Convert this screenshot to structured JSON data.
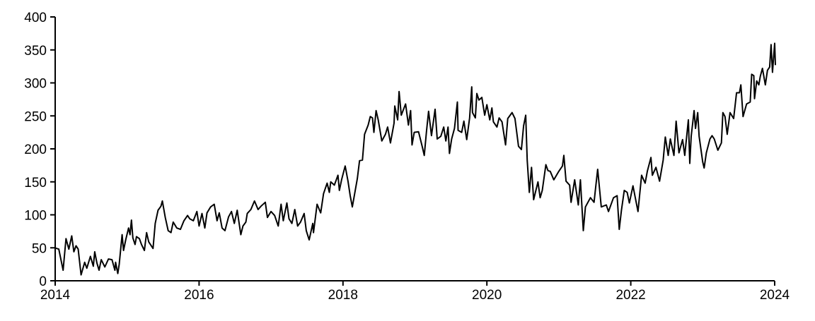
{
  "chart_data": {
    "type": "line",
    "title": "",
    "xlabel": "",
    "ylabel": "",
    "xlim": [
      2014,
      2024
    ],
    "ylim": [
      0,
      400
    ],
    "x_ticks": [
      "2014",
      "2016",
      "2018",
      "2020",
      "2022",
      "2024"
    ],
    "y_ticks": [
      "0",
      "50",
      "100",
      "150",
      "200",
      "250",
      "300",
      "350",
      "400"
    ],
    "grid": false,
    "legend": "none",
    "line_color": "#000000",
    "series": [
      {
        "points": [
          [
            2014.0,
            50
          ],
          [
            2014.02,
            49
          ],
          [
            2014.05,
            48
          ],
          [
            2014.11,
            16
          ],
          [
            2014.15,
            64
          ],
          [
            2014.19,
            48
          ],
          [
            2014.23,
            68
          ],
          [
            2014.26,
            44
          ],
          [
            2014.29,
            53
          ],
          [
            2014.32,
            48
          ],
          [
            2014.36,
            9
          ],
          [
            2014.41,
            28
          ],
          [
            2014.44,
            19
          ],
          [
            2014.49,
            37
          ],
          [
            2014.53,
            22
          ],
          [
            2014.55,
            44
          ],
          [
            2014.58,
            27
          ],
          [
            2014.61,
            16
          ],
          [
            2014.64,
            32
          ],
          [
            2014.69,
            21
          ],
          [
            2014.74,
            33
          ],
          [
            2014.79,
            32
          ],
          [
            2014.83,
            16
          ],
          [
            2014.84,
            28
          ],
          [
            2014.87,
            11
          ],
          [
            2014.89,
            25
          ],
          [
            2014.93,
            70
          ],
          [
            2014.95,
            46
          ],
          [
            2014.98,
            62
          ],
          [
            2015.02,
            80
          ],
          [
            2015.04,
            70
          ],
          [
            2015.06,
            92
          ],
          [
            2015.08,
            65
          ],
          [
            2015.11,
            55
          ],
          [
            2015.13,
            67
          ],
          [
            2015.17,
            64
          ],
          [
            2015.2,
            55
          ],
          [
            2015.24,
            46
          ],
          [
            2015.27,
            73
          ],
          [
            2015.3,
            59
          ],
          [
            2015.36,
            49
          ],
          [
            2015.39,
            87
          ],
          [
            2015.43,
            107
          ],
          [
            2015.47,
            113
          ],
          [
            2015.49,
            121
          ],
          [
            2015.53,
            96
          ],
          [
            2015.57,
            76
          ],
          [
            2015.61,
            73
          ],
          [
            2015.64,
            89
          ],
          [
            2015.69,
            80
          ],
          [
            2015.74,
            78
          ],
          [
            2015.79,
            91
          ],
          [
            2015.84,
            99
          ],
          [
            2015.87,
            94
          ],
          [
            2015.92,
            91
          ],
          [
            2015.97,
            105
          ],
          [
            2016.0,
            83
          ],
          [
            2016.04,
            102
          ],
          [
            2016.08,
            80
          ],
          [
            2016.11,
            103
          ],
          [
            2016.16,
            112
          ],
          [
            2016.21,
            116
          ],
          [
            2016.25,
            91
          ],
          [
            2016.28,
            103
          ],
          [
            2016.32,
            80
          ],
          [
            2016.36,
            76
          ],
          [
            2016.41,
            97
          ],
          [
            2016.45,
            105
          ],
          [
            2016.49,
            87
          ],
          [
            2016.53,
            107
          ],
          [
            2016.58,
            70
          ],
          [
            2016.61,
            83
          ],
          [
            2016.65,
            89
          ],
          [
            2016.67,
            102
          ],
          [
            2016.72,
            108
          ],
          [
            2016.77,
            121
          ],
          [
            2016.82,
            108
          ],
          [
            2016.86,
            113
          ],
          [
            2016.92,
            119
          ],
          [
            2016.95,
            96
          ],
          [
            2017.0,
            105
          ],
          [
            2017.05,
            99
          ],
          [
            2017.1,
            83
          ],
          [
            2017.14,
            116
          ],
          [
            2017.17,
            91
          ],
          [
            2017.22,
            118
          ],
          [
            2017.25,
            94
          ],
          [
            2017.29,
            87
          ],
          [
            2017.33,
            108
          ],
          [
            2017.37,
            83
          ],
          [
            2017.41,
            89
          ],
          [
            2017.46,
            102
          ],
          [
            2017.49,
            76
          ],
          [
            2017.53,
            62
          ],
          [
            2017.58,
            87
          ],
          [
            2017.59,
            73
          ],
          [
            2017.64,
            116
          ],
          [
            2017.69,
            103
          ],
          [
            2017.73,
            132
          ],
          [
            2017.78,
            148
          ],
          [
            2017.81,
            134
          ],
          [
            2017.83,
            150
          ],
          [
            2017.88,
            145
          ],
          [
            2017.93,
            160
          ],
          [
            2017.95,
            137
          ],
          [
            2017.98,
            153
          ],
          [
            2018.03,
            174
          ],
          [
            2018.07,
            151
          ],
          [
            2018.1,
            129
          ],
          [
            2018.13,
            112
          ],
          [
            2018.2,
            155
          ],
          [
            2018.23,
            182
          ],
          [
            2018.27,
            183
          ],
          [
            2018.3,
            222
          ],
          [
            2018.35,
            236
          ],
          [
            2018.38,
            249
          ],
          [
            2018.41,
            247
          ],
          [
            2018.43,
            225
          ],
          [
            2018.46,
            258
          ],
          [
            2018.49,
            244
          ],
          [
            2018.54,
            212
          ],
          [
            2018.59,
            222
          ],
          [
            2018.62,
            233
          ],
          [
            2018.66,
            209
          ],
          [
            2018.71,
            239
          ],
          [
            2018.72,
            265
          ],
          [
            2018.76,
            244
          ],
          [
            2018.78,
            287
          ],
          [
            2018.81,
            251
          ],
          [
            2018.87,
            268
          ],
          [
            2018.91,
            236
          ],
          [
            2018.94,
            258
          ],
          [
            2018.96,
            206
          ],
          [
            2018.99,
            225
          ],
          [
            2019.05,
            226
          ],
          [
            2019.1,
            204
          ],
          [
            2019.13,
            190
          ],
          [
            2019.16,
            226
          ],
          [
            2019.19,
            257
          ],
          [
            2019.23,
            220
          ],
          [
            2019.28,
            260
          ],
          [
            2019.31,
            215
          ],
          [
            2019.36,
            219
          ],
          [
            2019.4,
            233
          ],
          [
            2019.43,
            212
          ],
          [
            2019.46,
            233
          ],
          [
            2019.48,
            193
          ],
          [
            2019.51,
            215
          ],
          [
            2019.55,
            231
          ],
          [
            2019.59,
            271
          ],
          [
            2019.6,
            228
          ],
          [
            2019.65,
            225
          ],
          [
            2019.68,
            242
          ],
          [
            2019.72,
            214
          ],
          [
            2019.76,
            247
          ],
          [
            2019.79,
            294
          ],
          [
            2019.8,
            255
          ],
          [
            2019.84,
            247
          ],
          [
            2019.86,
            284
          ],
          [
            2019.89,
            274
          ],
          [
            2019.93,
            278
          ],
          [
            2019.97,
            251
          ],
          [
            2020.0,
            267
          ],
          [
            2020.04,
            244
          ],
          [
            2020.07,
            262
          ],
          [
            2020.09,
            241
          ],
          [
            2020.14,
            233
          ],
          [
            2020.17,
            247
          ],
          [
            2020.21,
            241
          ],
          [
            2020.26,
            206
          ],
          [
            2020.29,
            246
          ],
          [
            2020.35,
            255
          ],
          [
            2020.39,
            246
          ],
          [
            2020.44,
            204
          ],
          [
            2020.48,
            199
          ],
          [
            2020.51,
            235
          ],
          [
            2020.54,
            251
          ],
          [
            2020.56,
            183
          ],
          [
            2020.59,
            134
          ],
          [
            2020.62,
            172
          ],
          [
            2020.65,
            123
          ],
          [
            2020.71,
            150
          ],
          [
            2020.74,
            126
          ],
          [
            2020.77,
            137
          ],
          [
            2020.82,
            176
          ],
          [
            2020.85,
            167
          ],
          [
            2020.88,
            166
          ],
          [
            2020.93,
            153
          ],
          [
            2021.0,
            166
          ],
          [
            2021.05,
            174
          ],
          [
            2021.07,
            190
          ],
          [
            2021.1,
            151
          ],
          [
            2021.15,
            145
          ],
          [
            2021.17,
            119
          ],
          [
            2021.22,
            153
          ],
          [
            2021.27,
            115
          ],
          [
            2021.3,
            153
          ],
          [
            2021.34,
            76
          ],
          [
            2021.37,
            112
          ],
          [
            2021.44,
            126
          ],
          [
            2021.49,
            119
          ],
          [
            2021.51,
            140
          ],
          [
            2021.54,
            169
          ],
          [
            2021.59,
            112
          ],
          [
            2021.66,
            115
          ],
          [
            2021.69,
            105
          ],
          [
            2021.76,
            126
          ],
          [
            2021.81,
            129
          ],
          [
            2021.84,
            78
          ],
          [
            2021.87,
            107
          ],
          [
            2021.91,
            137
          ],
          [
            2021.95,
            134
          ],
          [
            2021.98,
            118
          ],
          [
            2022.03,
            144
          ],
          [
            2022.1,
            105
          ],
          [
            2022.15,
            160
          ],
          [
            2022.2,
            148
          ],
          [
            2022.23,
            166
          ],
          [
            2022.28,
            187
          ],
          [
            2022.3,
            160
          ],
          [
            2022.35,
            172
          ],
          [
            2022.4,
            151
          ],
          [
            2022.45,
            183
          ],
          [
            2022.48,
            218
          ],
          [
            2022.52,
            190
          ],
          [
            2022.55,
            215
          ],
          [
            2022.6,
            190
          ],
          [
            2022.63,
            242
          ],
          [
            2022.67,
            194
          ],
          [
            2022.72,
            214
          ],
          [
            2022.75,
            190
          ],
          [
            2022.8,
            244
          ],
          [
            2022.82,
            178
          ],
          [
            2022.84,
            219
          ],
          [
            2022.88,
            258
          ],
          [
            2022.9,
            231
          ],
          [
            2022.93,
            255
          ],
          [
            2022.95,
            219
          ],
          [
            2023.0,
            180
          ],
          [
            2023.02,
            171
          ],
          [
            2023.05,
            194
          ],
          [
            2023.1,
            215
          ],
          [
            2023.13,
            220
          ],
          [
            2023.16,
            215
          ],
          [
            2023.21,
            198
          ],
          [
            2023.26,
            209
          ],
          [
            2023.28,
            255
          ],
          [
            2023.31,
            249
          ],
          [
            2023.34,
            222
          ],
          [
            2023.38,
            255
          ],
          [
            2023.43,
            246
          ],
          [
            2023.47,
            285
          ],
          [
            2023.51,
            285
          ],
          [
            2023.53,
            297
          ],
          [
            2023.56,
            249
          ],
          [
            2023.61,
            268
          ],
          [
            2023.66,
            271
          ],
          [
            2023.68,
            313
          ],
          [
            2023.71,
            311
          ],
          [
            2023.72,
            276
          ],
          [
            2023.75,
            303
          ],
          [
            2023.78,
            297
          ],
          [
            2023.8,
            310
          ],
          [
            2023.83,
            322
          ],
          [
            2023.87,
            297
          ],
          [
            2023.9,
            319
          ],
          [
            2023.93,
            324
          ],
          [
            2023.95,
            358
          ],
          [
            2023.97,
            316
          ],
          [
            2024.0,
            360
          ],
          [
            2024.01,
            327
          ]
        ]
      }
    ]
  }
}
